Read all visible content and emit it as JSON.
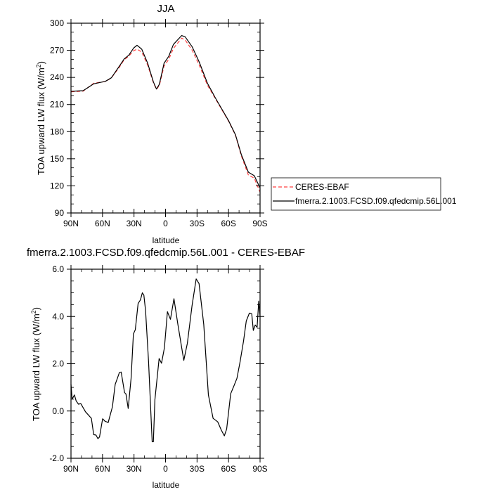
{
  "chart_data": [
    {
      "type": "line",
      "title": "JJA",
      "xlabel": "latitude",
      "ylabel": "TOA upward LW flux (W/m²)",
      "ylabel_main": "TOA upward LW flux (W/m",
      "ylabel_sup": "2",
      "ylabel_end": ")",
      "xlim": [
        90,
        -90
      ],
      "ylim": [
        90,
        300
      ],
      "x_ticks": [
        90,
        60,
        30,
        0,
        -30,
        -60,
        -90
      ],
      "x_tick_labels": [
        "90N",
        "60N",
        "30N",
        "0",
        "30S",
        "60S",
        "90S"
      ],
      "y_ticks": [
        90,
        120,
        150,
        180,
        210,
        240,
        270,
        300
      ],
      "y_tick_labels": [
        "90",
        "120",
        "150",
        "180",
        "210",
        "240",
        "270",
        "300"
      ],
      "grid": false,
      "legend_placement": "right",
      "series": [
        {
          "name": "CERES-EBAF",
          "color": "#ff0000",
          "style": "dashed",
          "x": [
            90,
            78.4,
            68.4,
            57.2,
            51.6,
            43.8,
            39.4,
            34.9,
            30.4,
            27.1,
            22.6,
            17.0,
            11.5,
            8.6,
            5.9,
            1.4,
            -3.1,
            -7.5,
            -15.3,
            -18.7,
            -25.4,
            -32.1,
            -39.9,
            -47.7,
            -60.0,
            -66.6,
            -72.2,
            -78.9,
            -84.5,
            -90.0
          ],
          "y": [
            224,
            224.8,
            233.5,
            235.5,
            239.3,
            251.5,
            259.5,
            263.5,
            269.5,
            271.2,
            268,
            253.5,
            234,
            226.8,
            231,
            252.5,
            260,
            272,
            283.4,
            281.5,
            270,
            253.5,
            231.5,
            216,
            191.5,
            176,
            153,
            132,
            128.5,
            113
          ]
        },
        {
          "name": "fmerra.2.1003.FCSD.f09.qfedcmip.56L.001",
          "color": "#000000",
          "style": "solid",
          "x": [
            90,
            78.4,
            68.4,
            57.2,
            51.6,
            43.8,
            39.4,
            34.9,
            30.4,
            27.1,
            22.6,
            17.0,
            11.5,
            8.6,
            5.9,
            1.4,
            -3.1,
            -7.5,
            -15.3,
            -18.7,
            -25.4,
            -32.1,
            -39.9,
            -47.7,
            -60.0,
            -66.6,
            -72.2,
            -78.9,
            -84.5,
            -90.0
          ],
          "y": [
            224.6,
            225.3,
            232.9,
            235.7,
            239.6,
            252.6,
            260.3,
            264.7,
            272.5,
            275.6,
            271.2,
            255.7,
            234.9,
            227.1,
            232.3,
            255.7,
            263.4,
            276.4,
            286.3,
            285.0,
            273.8,
            256.9,
            233.6,
            216.8,
            192.1,
            176.6,
            154.5,
            135.1,
            131.2,
            117.7
          ]
        }
      ]
    },
    {
      "type": "line",
      "title": "fmerra.2.1003.FCSD.f09.qfedcmip.56L.001 - CERES-EBAF",
      "xlabel": "latitude",
      "ylabel": "TOA upward LW flux (W/m²)",
      "ylabel_main": "TOA upward LW flux (W/m",
      "ylabel_sup": "2",
      "ylabel_end": ")",
      "xlim": [
        90,
        -90
      ],
      "ylim": [
        -2.0,
        6.0
      ],
      "x_ticks": [
        90,
        60,
        30,
        0,
        -30,
        -60,
        -90
      ],
      "x_tick_labels": [
        "90N",
        "60N",
        "30N",
        "0",
        "30S",
        "60S",
        "90S"
      ],
      "y_ticks": [
        -2,
        0,
        2,
        4,
        6
      ],
      "y_tick_labels": [
        "-2.0",
        "0.0",
        "2.0",
        "4.0",
        "6.0"
      ],
      "grid": false,
      "series": [
        {
          "color": "#000000",
          "style": "solid",
          "x": [
            90,
            88.9,
            86.7,
            85.1,
            82.9,
            80.6,
            76.2,
            70.6,
            68.4,
            66.2,
            64.4,
            62.8,
            59.9,
            57.7,
            54.6,
            50.6,
            47.9,
            45.7,
            43.9,
            42.2,
            39.0,
            37.7,
            35.5,
            32.8,
            30.6,
            28.8,
            26.1,
            23.9,
            22.1,
            20.6,
            19.0,
            16.1,
            12.7,
            11.6,
            10.1,
            6.1,
            3.8,
            1.1,
            -1.8,
            -4.7,
            -8.0,
            -11.8,
            -17.4,
            -20.8,
            -25.2,
            -29.2,
            -31.9,
            -36.4,
            -40.8,
            -45.3,
            -49.7,
            -53.1,
            -56.0,
            -58.2,
            -62.0,
            -65.3,
            -68.0,
            -70.9,
            -74.3,
            -76.9,
            -79.8,
            -82.1,
            -83.6,
            -85.4,
            -87.2,
            -88.7,
            -90
          ],
          "y": [
            1.13,
            0.5,
            0.68,
            0.43,
            0.29,
            0.31,
            -0.03,
            -0.31,
            -1.0,
            -1.02,
            -1.17,
            -1.1,
            -0.33,
            -0.43,
            -0.49,
            0.17,
            1.13,
            1.4,
            1.63,
            1.65,
            0.78,
            0.72,
            0.11,
            1.38,
            3.26,
            3.44,
            4.55,
            4.7,
            5.0,
            4.9,
            4.25,
            2.07,
            -1.3,
            -1.3,
            0.48,
            2.22,
            2.02,
            2.67,
            4.2,
            3.88,
            4.75,
            3.66,
            2.14,
            2.87,
            4.45,
            5.59,
            5.39,
            3.66,
            0.68,
            -0.31,
            -0.46,
            -0.81,
            -1.05,
            -0.76,
            0.73,
            1.08,
            1.38,
            2.07,
            2.96,
            3.81,
            4.14,
            4.11,
            3.41,
            3.64,
            3.54,
            4.65,
            4.01
          ]
        }
      ]
    }
  ]
}
